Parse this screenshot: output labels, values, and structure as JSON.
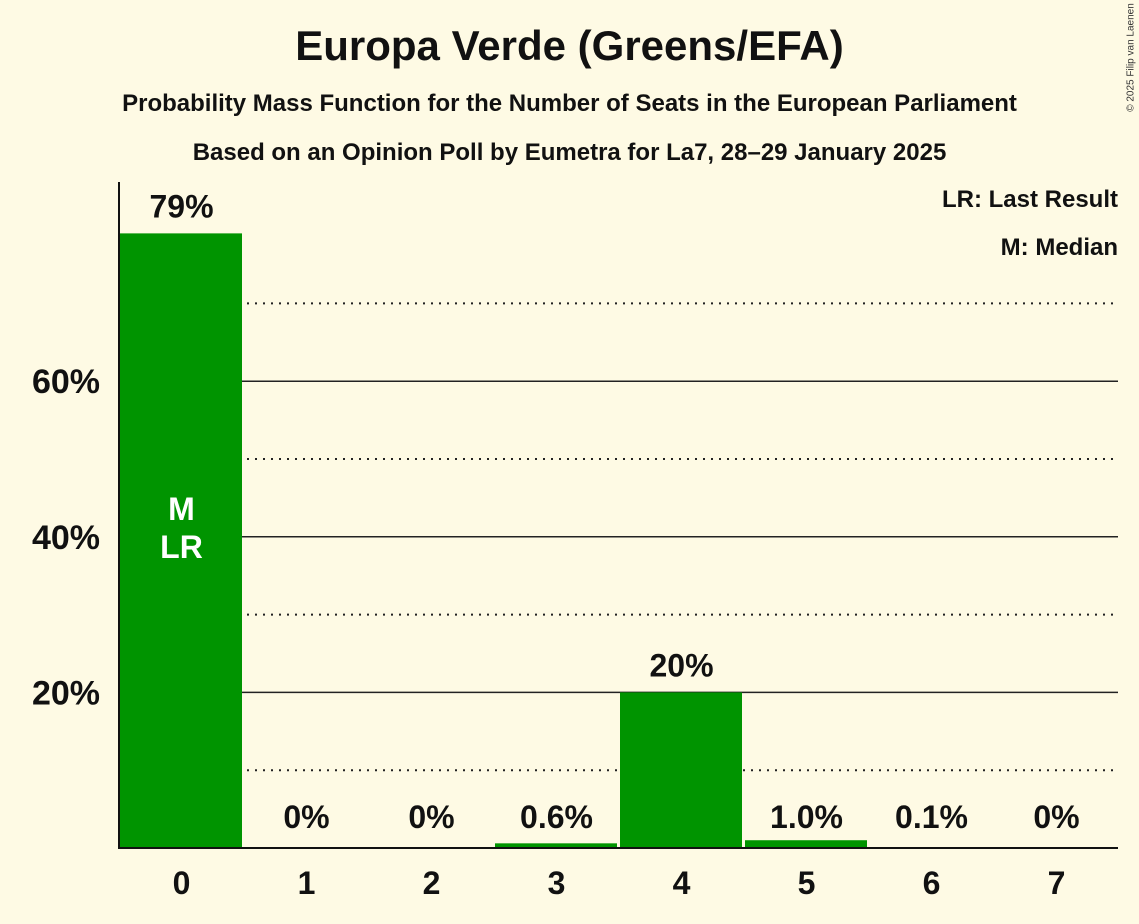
{
  "chart_data": {
    "type": "bar",
    "title": "Europa Verde (Greens/EFA)",
    "subtitle": "Probability Mass Function for the Number of Seats in the European Parliament",
    "subtitle2": "Based on an Opinion Poll by Eumetra for La7, 28–29 January 2025",
    "copyright": "© 2025 Filip van Laenen",
    "categories": [
      "0",
      "1",
      "2",
      "3",
      "4",
      "5",
      "6",
      "7"
    ],
    "values": [
      79,
      0,
      0,
      0.6,
      20,
      1.0,
      0.1,
      0
    ],
    "labels": [
      "79%",
      "0%",
      "0%",
      "0.6%",
      "20%",
      "1.0%",
      "0.1%",
      "0%"
    ],
    "ylim": [
      0,
      80
    ],
    "yticks": [
      20,
      40,
      60
    ],
    "ytick_labels": [
      "20%",
      "40%",
      "60%"
    ],
    "minor_gridlines": [
      10,
      30,
      50,
      70
    ],
    "bar_annotations": {
      "0": [
        "M",
        "LR"
      ]
    },
    "legend": [
      "LR: Last Result",
      "M: Median"
    ],
    "legend_position": "top-right",
    "colors": {
      "bar": "#009400",
      "background": "#fefae4"
    }
  }
}
